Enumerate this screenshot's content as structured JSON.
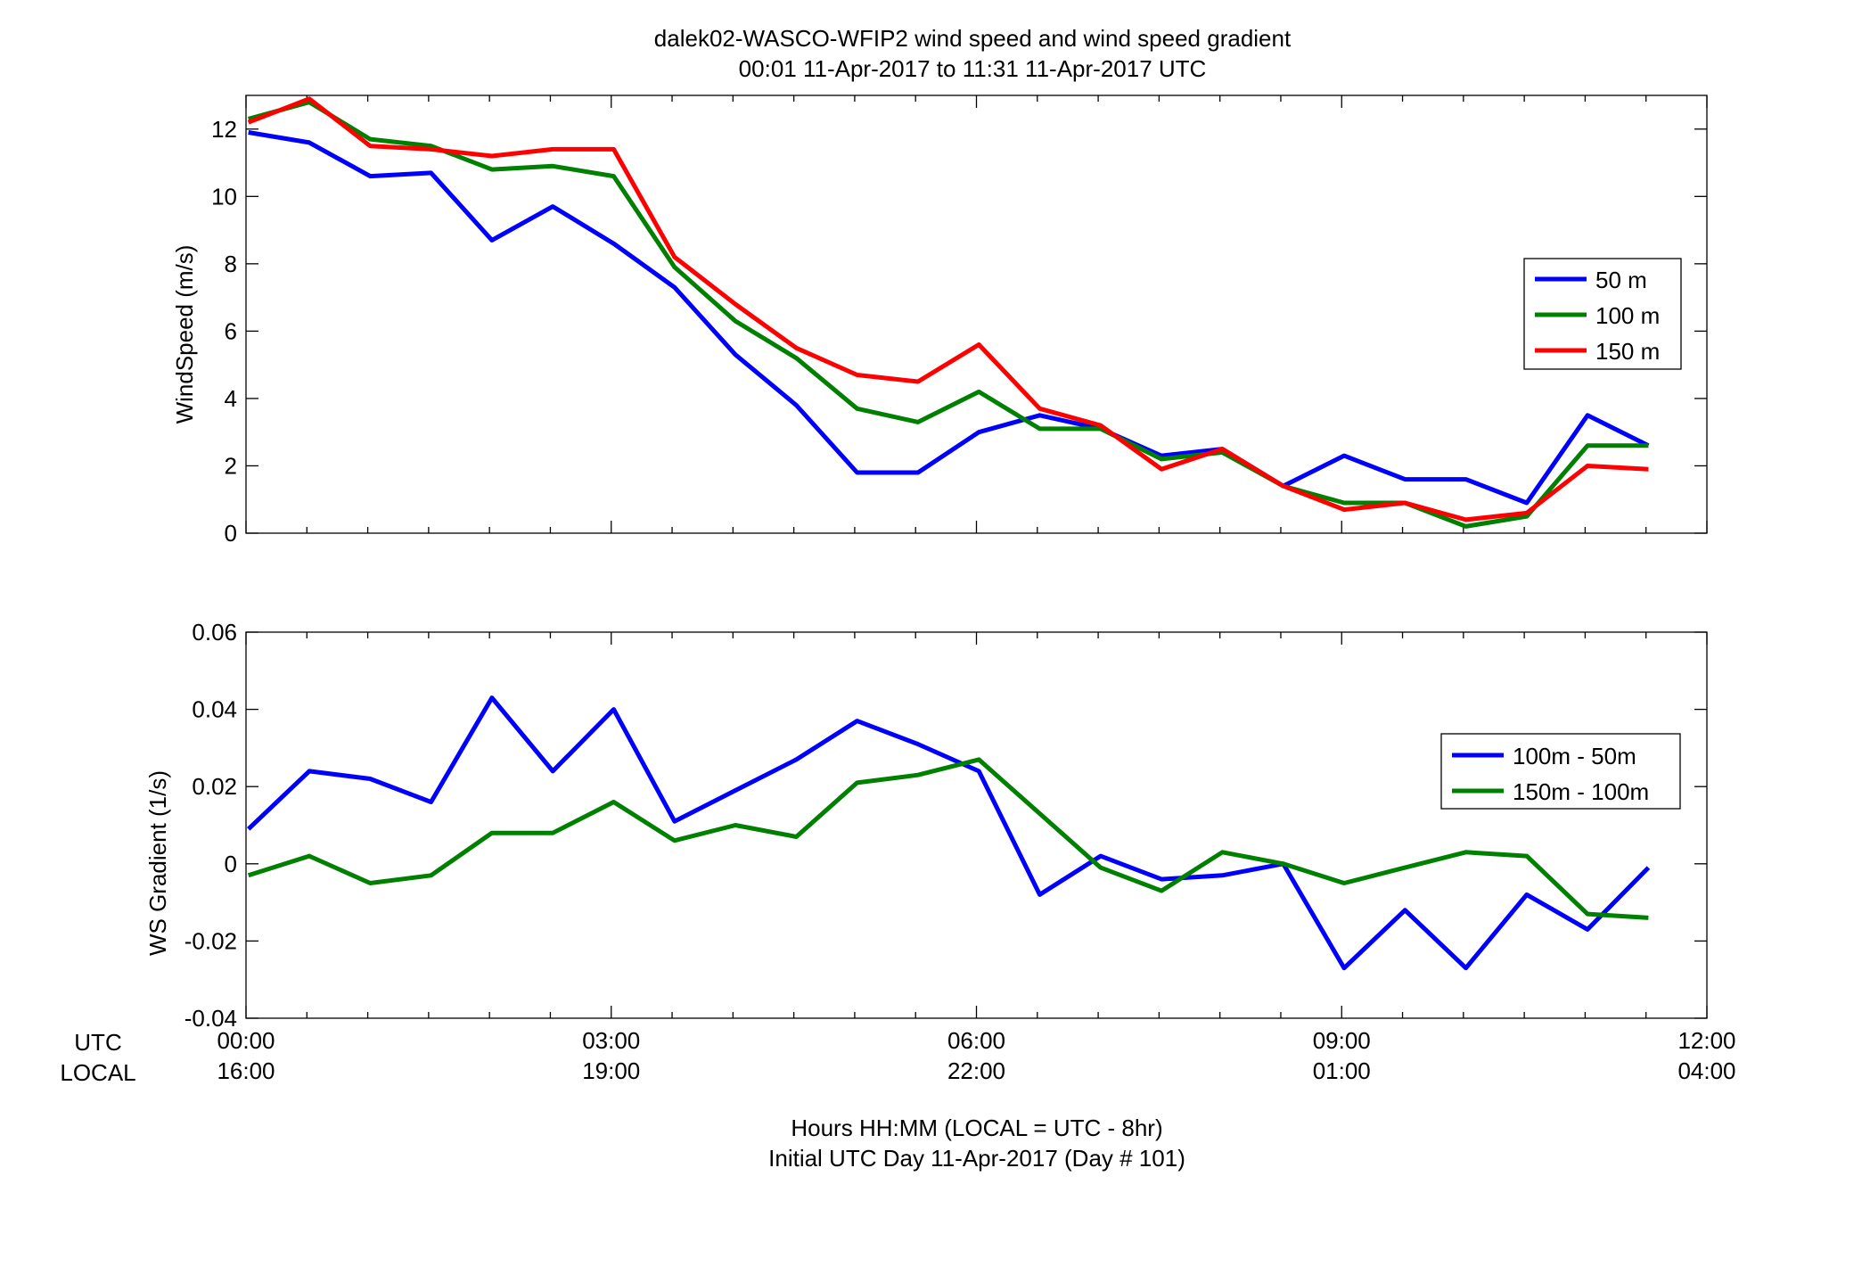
{
  "figure": {
    "title_line1": "dalek02-WASCO-WFIP2  wind speed and wind speed gradient",
    "title_line2": "00:01 11-Apr-2017 to 11:31 11-Apr-2017  UTC",
    "row_label_utc": "UTC",
    "row_label_local": "LOCAL",
    "xlabel_line1": "Hours HH:MM  (LOCAL = UTC - 8hr)",
    "xlabel_line2": "Initial UTC Day 11-Apr-2017 (Day # 101)",
    "x_ticks": [
      0,
      3,
      6,
      9,
      12
    ],
    "x_tick_labels_utc": [
      "00:00",
      "03:00",
      "06:00",
      "09:00",
      "12:00"
    ],
    "x_tick_labels_local": [
      "16:00",
      "19:00",
      "22:00",
      "01:00",
      "04:00"
    ]
  },
  "chart_data": [
    {
      "type": "line",
      "title": "",
      "xlabel": "",
      "ylabel": "WindSpeed (m/s)",
      "xlim": [
        0,
        12
      ],
      "ylim": [
        0,
        13
      ],
      "y_ticks": [
        0,
        2,
        4,
        6,
        8,
        10,
        12
      ],
      "y_tick_labels": [
        "0",
        "2",
        "4",
        "6",
        "8",
        "10",
        "12"
      ],
      "grid": false,
      "legend_position": "right",
      "x": [
        0.02,
        0.52,
        1.02,
        1.52,
        2.02,
        2.52,
        3.02,
        3.52,
        4.02,
        4.52,
        5.02,
        5.52,
        6.02,
        6.52,
        7.02,
        7.52,
        8.02,
        8.52,
        9.02,
        9.52,
        10.02,
        10.52,
        11.02,
        11.52
      ],
      "series": [
        {
          "name": "50 m",
          "color": "#0000ff",
          "values": [
            11.9,
            11.6,
            10.6,
            10.7,
            8.7,
            9.7,
            8.6,
            7.3,
            5.3,
            3.8,
            1.8,
            1.8,
            3.0,
            3.5,
            3.1,
            2.3,
            2.5,
            1.4,
            2.3,
            1.6,
            1.6,
            0.9,
            3.5,
            2.6
          ]
        },
        {
          "name": "100 m",
          "color": "#008000",
          "values": [
            12.3,
            12.8,
            11.7,
            11.5,
            10.8,
            10.9,
            10.6,
            7.9,
            6.3,
            5.2,
            3.7,
            3.3,
            4.2,
            3.1,
            3.1,
            2.2,
            2.4,
            1.4,
            0.9,
            0.9,
            0.2,
            0.5,
            2.6,
            2.6
          ]
        },
        {
          "name": "150 m",
          "color": "#ff0000",
          "values": [
            12.2,
            12.9,
            11.5,
            11.4,
            11.2,
            11.4,
            11.4,
            8.2,
            6.8,
            5.5,
            4.7,
            4.5,
            5.6,
            3.7,
            3.2,
            1.9,
            2.5,
            1.4,
            0.7,
            0.9,
            0.4,
            0.6,
            2.0,
            1.9
          ]
        }
      ]
    },
    {
      "type": "line",
      "title": "",
      "xlabel": "",
      "ylabel": "WS Gradient (1/s)",
      "xlim": [
        0,
        12
      ],
      "ylim": [
        -0.04,
        0.06
      ],
      "y_ticks": [
        -0.04,
        -0.02,
        0,
        0.02,
        0.04,
        0.06
      ],
      "y_tick_labels": [
        "-0.04",
        "-0.02",
        "0",
        "0.02",
        "0.04",
        "0.06"
      ],
      "grid": false,
      "legend_position": "right",
      "x": [
        0.02,
        0.52,
        1.02,
        1.52,
        2.02,
        2.52,
        3.02,
        3.52,
        4.02,
        4.52,
        5.02,
        5.52,
        6.02,
        6.52,
        7.02,
        7.52,
        8.02,
        8.52,
        9.02,
        9.52,
        10.02,
        10.52,
        11.02,
        11.52
      ],
      "series": [
        {
          "name": "100m - 50m",
          "color": "#0000ff",
          "values": [
            0.009,
            0.024,
            0.022,
            0.016,
            0.043,
            0.024,
            0.04,
            0.011,
            0.019,
            0.027,
            0.037,
            0.031,
            0.024,
            -0.008,
            0.002,
            -0.004,
            -0.003,
            0.0,
            -0.027,
            -0.012,
            -0.027,
            -0.008,
            -0.017,
            -0.001
          ]
        },
        {
          "name": "150m - 100m",
          "color": "#008000",
          "values": [
            -0.003,
            0.002,
            -0.005,
            -0.003,
            0.008,
            0.008,
            0.016,
            0.006,
            0.01,
            0.007,
            0.021,
            0.023,
            0.027,
            0.013,
            -0.001,
            -0.007,
            0.003,
            0.0,
            -0.005,
            -0.001,
            0.003,
            0.002,
            -0.013,
            -0.014
          ]
        }
      ]
    }
  ]
}
